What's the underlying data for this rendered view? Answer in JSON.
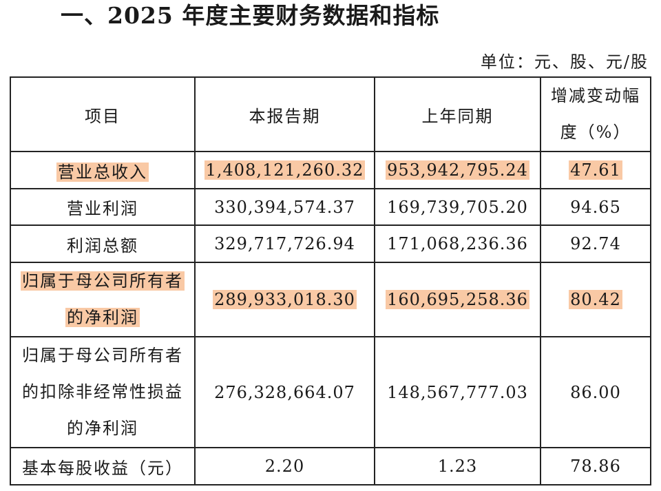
{
  "title": "一、2025 年度主要财务数据和指标",
  "unit": "单位：元、股、元/股",
  "headers": {
    "item": "项目",
    "current": "本报告期",
    "previous": "上年同期",
    "change_line1": "增减变动幅",
    "change_line2": "度（%）"
  },
  "rows": [
    {
      "label_lines": [
        "营业总收入"
      ],
      "current": "1,408,121,260.32",
      "previous": "953,942,795.24",
      "change": "47.61",
      "highlighted": true
    },
    {
      "label_lines": [
        "营业利润"
      ],
      "current": "330,394,574.37",
      "previous": "169,739,705.20",
      "change": "94.65",
      "highlighted": false
    },
    {
      "label_lines": [
        "利润总额"
      ],
      "current": "329,717,726.94",
      "previous": "171,068,236.36",
      "change": "92.74",
      "highlighted": false
    },
    {
      "label_lines": [
        "归属于母公司所有者",
        "的净利润"
      ],
      "current": "289,933,018.30",
      "previous": "160,695,258.36",
      "change": "80.42",
      "highlighted": true
    },
    {
      "label_lines": [
        "归属于母公司所有者",
        "的扣除非经常性损益",
        "的净利润"
      ],
      "current": "276,328,664.07",
      "previous": "148,567,777.03",
      "change": "86.00",
      "highlighted": false
    },
    {
      "label_lines": [
        "基本每股收益（元）"
      ],
      "current": "2.20",
      "previous": "1.23",
      "change": "78.86",
      "highlighted": false
    }
  ]
}
